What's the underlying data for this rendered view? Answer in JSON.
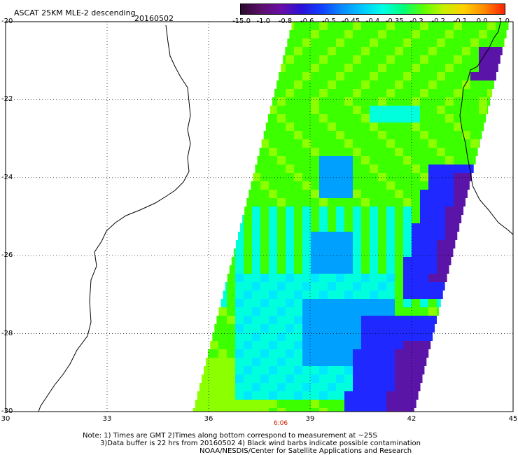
{
  "header": {
    "title": "ASCAT 25KM MLE-2 descending",
    "date": "20160502"
  },
  "colorbar": {
    "labels": [
      "-15.0",
      "-1.0",
      "-0.8",
      "-0.6",
      "-0.5",
      "-0.45",
      "-0.4",
      "-0.35",
      "-0.3",
      "-0.2",
      "-0.1",
      "0.0",
      "1.0"
    ],
    "colors": [
      "#2b0a2e",
      "#5c0f6a",
      "#6a0ea8",
      "#2a10d8",
      "#1040ff",
      "#0a8cff",
      "#00c8ff",
      "#00ffe6",
      "#00ff7a",
      "#5cff00",
      "#c8f000",
      "#ffd000",
      "#ff8a00",
      "#ff2000"
    ]
  },
  "map": {
    "lat_labels": [
      "-20",
      "-22",
      "-24",
      "-26",
      "-28",
      "-30"
    ],
    "lon_labels": [
      "30",
      "33",
      "36",
      "39",
      "42",
      "45"
    ],
    "lat_range": [
      -30,
      -20
    ],
    "lon_range": [
      30,
      45
    ],
    "time_label": "6:06",
    "swath_colors": {
      "green": "#3cff00",
      "lime": "#8cff00",
      "cyan": "#00ffdd",
      "light_cyan": "#00e8ff",
      "sky": "#00a0ff",
      "blue": "#1e28ff",
      "purple": "#5a14a8"
    }
  },
  "notes": {
    "line1": "Note: 1) Times are GMT 2)Times along bottom correspond to measurement at ~25S",
    "line2": "3)Data buffer is 22 hrs from 20160502 4) Black wind barbs indicate possible contamination",
    "line3": "NOAA/NESDIS/Center for Satellite Applications and Research"
  }
}
